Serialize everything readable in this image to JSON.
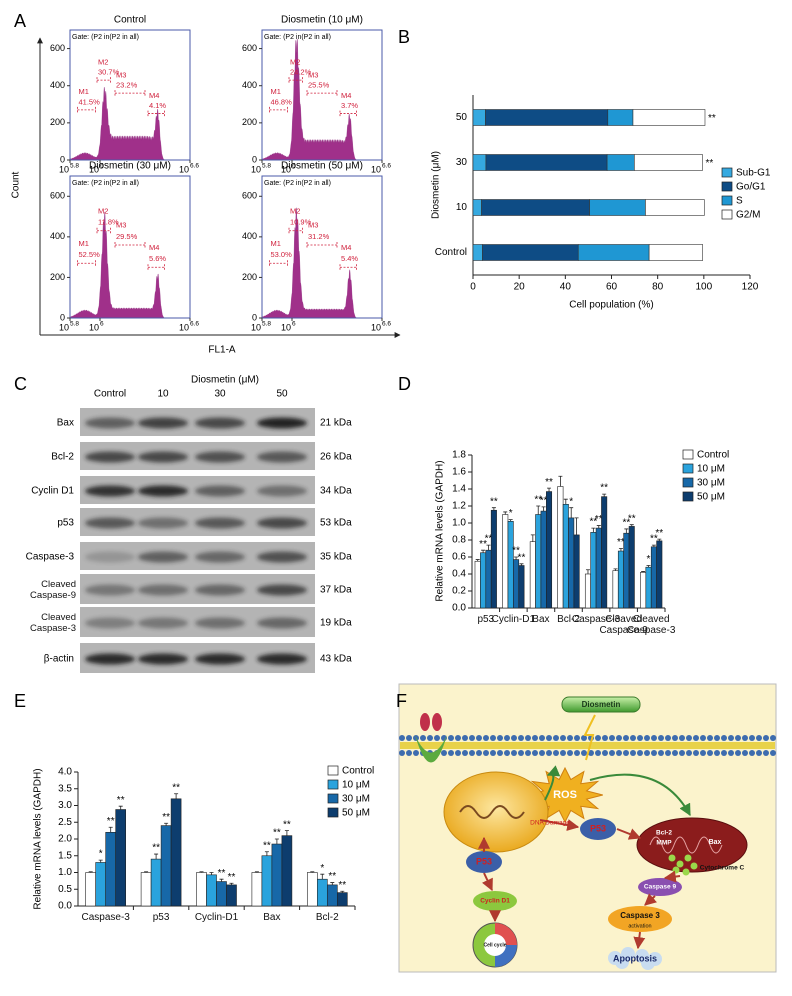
{
  "panel_labels": [
    "A",
    "B",
    "C",
    "D",
    "E",
    "F"
  ],
  "flow": {
    "ylabel": "Count",
    "xlabel": "FL1-A",
    "ylim": [
      0,
      700
    ],
    "yticks": [
      0,
      200,
      400,
      600
    ],
    "xlim": [
      5.8,
      6.6
    ],
    "xticks": [
      5.8,
      6,
      6.6
    ],
    "tick_base": "10",
    "plots": [
      {
        "title": "Control",
        "gate": "Gate: (P2 in(P2 in all)",
        "gates": [
          {
            "name": "M4",
            "label": "4.1%"
          },
          {
            "name": "M1",
            "label": "41.5%"
          },
          {
            "name": "M2",
            "label": "30.7%"
          },
          {
            "name": "M3",
            "label": "23.2%"
          }
        ]
      },
      {
        "title": "Diosmetin (10 μM)",
        "gate": "Gate: (P2 in(P2 in all)",
        "gates": [
          {
            "name": "M4",
            "label": "3.7%"
          },
          {
            "name": "M1",
            "label": "46.8%"
          },
          {
            "name": "M2",
            "label": "24.2%"
          },
          {
            "name": "M3",
            "label": "25.5%"
          }
        ]
      },
      {
        "title": "Diosmetin (30 μM)",
        "gate": "Gate: (P2 in(P2 in all)",
        "gates": [
          {
            "name": "M4",
            "label": "5.6%"
          },
          {
            "name": "M1",
            "label": "52.5%"
          },
          {
            "name": "M2",
            "label": "11.8%"
          },
          {
            "name": "M3",
            "label": "29.5%"
          }
        ]
      },
      {
        "title": "Diosmetin (50 μM)",
        "gate": "Gate: (P2 in(P2 in all)",
        "gates": [
          {
            "name": "M4",
            "label": "5.4%"
          },
          {
            "name": "M1",
            "label": "53.0%"
          },
          {
            "name": "M2",
            "label": "10.9%"
          },
          {
            "name": "M3",
            "label": "31.2%"
          }
        ]
      }
    ]
  },
  "chart_data": [
    {
      "type": "barh",
      "stacked": true,
      "xlabel": "Cell population (%)",
      "ylabel": "Diosmetin (μM)",
      "categories": [
        "Control",
        "10",
        "30",
        "50"
      ],
      "series": [
        {
          "name": "Sub-G1",
          "color": "#35a9e0",
          "values": [
            4.1,
            3.7,
            5.6,
            5.4
          ]
        },
        {
          "name": "Go/G1",
          "color": "#0e4c85",
          "values": [
            41.5,
            46.8,
            52.5,
            53.0
          ],
          "significance": [
            null,
            "**",
            "**",
            "**"
          ]
        },
        {
          "name": "S",
          "color": "#1f97d3",
          "values": [
            30.7,
            24.2,
            11.8,
            10.9
          ],
          "significance": [
            null,
            "**",
            "**",
            "**"
          ]
        },
        {
          "name": "G2/M",
          "color": "#ffffff",
          "values": [
            23.2,
            25.5,
            29.5,
            31.2
          ],
          "significance": [
            null,
            null,
            "**",
            "**"
          ]
        }
      ],
      "xlim": [
        0,
        120
      ],
      "xticks": [
        0,
        20,
        40,
        60,
        80,
        100,
        120
      ]
    },
    {
      "type": "bar",
      "ylabel": "Relative mRNA levels (GAPDH)",
      "categories": [
        "p53",
        "Cyclin-D1",
        "Bax",
        "Bcl-2",
        "Caspase-3",
        "Cleaved Caspase-9",
        "Cleaved Caspase-3"
      ],
      "series": [
        {
          "name": "Control",
          "color": "#ffffff",
          "values": [
            0.55,
            1.1,
            0.78,
            1.43,
            0.4,
            0.44,
            0.42
          ],
          "errors": [
            0.02,
            0.03,
            0.08,
            0.12,
            0.05,
            0.02,
            0.01
          ]
        },
        {
          "name": "10 μM",
          "color": "#2aa3dd",
          "values": [
            0.65,
            1.02,
            1.1,
            1.22,
            0.89,
            0.67,
            0.48
          ],
          "errors": [
            0.03,
            0.02,
            0.1,
            0.06,
            0.05,
            0.03,
            0.02
          ],
          "significance": [
            "**",
            "*",
            "**",
            null,
            "**",
            "**",
            "*"
          ]
        },
        {
          "name": "30 μM",
          "color": "#1768a8",
          "values": [
            0.68,
            0.57,
            1.14,
            1.06,
            0.94,
            0.88,
            0.72
          ],
          "errors": [
            0.06,
            0.03,
            0.05,
            0.12,
            0.03,
            0.05,
            0.02
          ],
          "significance": [
            "**",
            "**",
            "**",
            "*",
            "**",
            "**",
            "**"
          ]
        },
        {
          "name": "50 μM",
          "color": "#0d3d6e",
          "values": [
            1.15,
            0.5,
            1.37,
            0.86,
            1.31,
            0.96,
            0.79
          ],
          "errors": [
            0.03,
            0.02,
            0.04,
            0.2,
            0.03,
            0.02,
            0.02
          ],
          "significance": [
            "**",
            "**",
            "**",
            null,
            "**",
            "**",
            "**"
          ]
        }
      ],
      "ylim": [
        0,
        1.8
      ],
      "yticks": [
        {
          "value": 0,
          "label": "0.0"
        },
        0.2,
        0.4,
        0.6,
        0.8,
        {
          "value": 1,
          "label": "1.0"
        },
        1.2,
        1.4,
        1.6,
        1.8
      ]
    },
    {
      "type": "bar",
      "ylabel": "Relative mRNA levels (GAPDH)",
      "categories": [
        "Caspase-3",
        "p53",
        "Cyclin-D1",
        "Bax",
        "Bcl-2"
      ],
      "series": [
        {
          "name": "Control",
          "color": "#ffffff",
          "values": [
            1,
            1,
            1,
            1,
            1
          ],
          "errors": [
            0.02,
            0.02,
            0.02,
            0.02,
            0.02
          ]
        },
        {
          "name": "10 μM",
          "color": "#2aa3dd",
          "values": [
            1.3,
            1.4,
            0.93,
            1.5,
            0.8
          ],
          "errors": [
            0.07,
            0.15,
            0.07,
            0.12,
            0.15
          ],
          "significance": [
            "*",
            "**",
            null,
            "**",
            "*"
          ]
        },
        {
          "name": "30 μM",
          "color": "#1768a8",
          "values": [
            2.2,
            2.4,
            0.73,
            1.85,
            0.63
          ],
          "errors": [
            0.15,
            0.07,
            0.07,
            0.15,
            0.07
          ],
          "significance": [
            "**",
            "**",
            "**",
            "**",
            "**"
          ]
        },
        {
          "name": "50 μM",
          "color": "#0d3d6e",
          "values": [
            2.88,
            3.2,
            0.63,
            2.1,
            0.4
          ],
          "errors": [
            0.1,
            0.15,
            0.05,
            0.15,
            0.04
          ],
          "significance": [
            "**",
            "**",
            "**",
            "**",
            "**"
          ]
        }
      ],
      "ylim": [
        0,
        4
      ],
      "yticks": [
        {
          "value": 0,
          "label": "0.0"
        },
        0.5,
        {
          "value": 1,
          "label": "1.0"
        },
        1.5,
        {
          "value": 2,
          "label": "2.0"
        },
        2.5,
        {
          "value": 3,
          "label": "3.0"
        },
        3.5,
        {
          "value": 4,
          "label": "4.0"
        }
      ]
    }
  ],
  "blot": {
    "title": "Diosmetin (μM)",
    "columns": [
      "Control",
      "10",
      "30",
      "50"
    ],
    "rows": [
      {
        "label": "Bax",
        "size": "21 kDa"
      },
      {
        "label": "Bcl-2",
        "size": "26 kDa"
      },
      {
        "label": "Cyclin D1",
        "size": "34 kDa"
      },
      {
        "label": "p53",
        "size": "53 kDa"
      },
      {
        "label": "Caspase-3",
        "size": "35 kDa"
      },
      {
        "label": "Cleaved Caspase-9",
        "size": "37 kDa"
      },
      {
        "label": "Cleaved Caspase-3",
        "size": "19 kDa"
      },
      {
        "label": "β-actin",
        "size": "43 kDa"
      }
    ]
  },
  "diagram": {
    "nodes": [
      {
        "label": "Diosmetin"
      },
      {
        "label": "ROS"
      },
      {
        "label": "DNA Damage"
      },
      {
        "label": "P53"
      },
      {
        "label": "P53"
      },
      {
        "label": "Bcl-2"
      },
      {
        "label": "MMP"
      },
      {
        "label": "Bax"
      },
      {
        "label": "Cytochrome C"
      },
      {
        "label": "Caspase 9"
      },
      {
        "label": "Caspase 3"
      },
      {
        "label": "activation"
      },
      {
        "label": "Cyclin D1"
      },
      {
        "label": "Cell cycle"
      },
      {
        "label": "Apoptosis"
      }
    ]
  }
}
